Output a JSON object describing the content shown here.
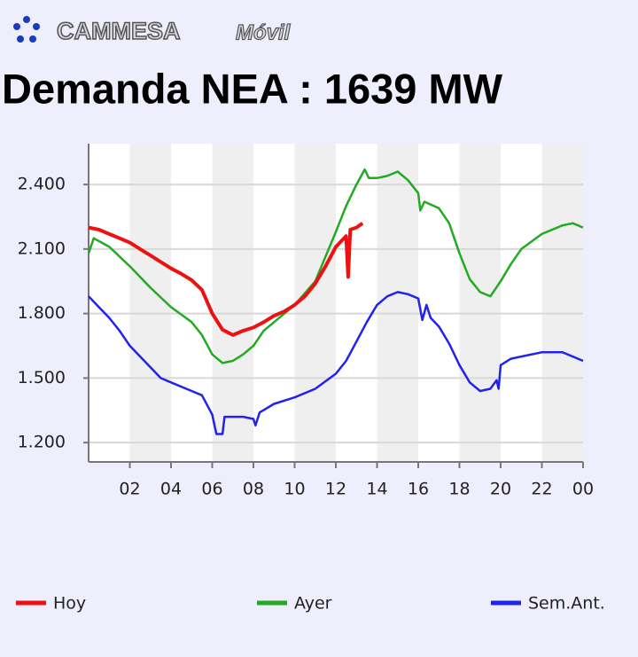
{
  "header": {
    "brand": "CAMMESA",
    "app": "Móvil"
  },
  "chart_data": {
    "type": "line",
    "title": "Demanda NEA : 1639 MW",
    "xlim": [
      0,
      24
    ],
    "xticks": [
      {
        "value": 2,
        "label": "02"
      },
      {
        "value": 4,
        "label": "04"
      },
      {
        "value": 6,
        "label": "06"
      },
      {
        "value": 8,
        "label": "08"
      },
      10,
      12,
      14,
      16,
      18,
      20,
      22,
      {
        "value": 24,
        "label": "00"
      }
    ],
    "ylim": [
      1110,
      2590
    ],
    "yticks": [
      {
        "value": 1200,
        "label": "1.200"
      },
      {
        "value": 1500,
        "label": "1.500"
      },
      {
        "value": 1800,
        "label": "1.800"
      },
      {
        "value": 2100,
        "label": "2.100"
      },
      {
        "value": 2400,
        "label": "2.400"
      }
    ],
    "grid": true,
    "legend": "bottom",
    "series": [
      {
        "name": "Hoy",
        "color": "#ee1111",
        "x": [
          0,
          0.5,
          1,
          1.5,
          2,
          2.5,
          3,
          3.5,
          4,
          4.5,
          5,
          5.5,
          6,
          6.5,
          7,
          7.5,
          8,
          8.5,
          9,
          9.5,
          10,
          10.5,
          11,
          11.5,
          12,
          12.5,
          12.6,
          12.7,
          13,
          13.3
        ],
        "values": [
          2200,
          2190,
          2170,
          2150,
          2130,
          2100,
          2070,
          2040,
          2010,
          1985,
          1955,
          1910,
          1800,
          1725,
          1700,
          1720,
          1735,
          1760,
          1790,
          1810,
          1840,
          1880,
          1940,
          2020,
          2110,
          2160,
          1970,
          2190,
          2200,
          2220
        ]
      },
      {
        "name": "Ayer",
        "color": "#22aa22",
        "x": [
          0,
          0.25,
          1,
          2,
          3,
          4,
          5,
          5.5,
          6,
          6.5,
          7,
          7.5,
          8,
          8.5,
          9,
          10,
          11,
          12,
          12.5,
          13,
          13.4,
          13.6,
          14,
          14.5,
          15,
          15.5,
          16,
          16.1,
          16.3,
          17,
          17.5,
          18,
          18.5,
          19,
          19.5,
          20,
          20.5,
          21,
          22,
          23,
          23.5,
          24
        ],
        "values": [
          2080,
          2150,
          2110,
          2020,
          1920,
          1830,
          1760,
          1700,
          1610,
          1570,
          1580,
          1610,
          1650,
          1720,
          1760,
          1840,
          1950,
          2180,
          2300,
          2400,
          2470,
          2430,
          2430,
          2440,
          2460,
          2420,
          2360,
          2280,
          2320,
          2290,
          2220,
          2080,
          1960,
          1900,
          1880,
          1950,
          2030,
          2100,
          2170,
          2210,
          2220,
          2200
        ]
      },
      {
        "name": "Sem.Ant.",
        "color": "#2222ee",
        "x": [
          0,
          0.5,
          1,
          1.5,
          2,
          3,
          3.5,
          4,
          5,
          5.5,
          6,
          6.2,
          6.5,
          6.6,
          7,
          7.5,
          8,
          8.1,
          8.3,
          9,
          10,
          11,
          12,
          12.5,
          13,
          13.5,
          14,
          14.5,
          15,
          15.5,
          16,
          16.2,
          16.4,
          16.6,
          17,
          17.5,
          18,
          18.5,
          19,
          19.5,
          19.8,
          19.9,
          20,
          20.5,
          21,
          22,
          23,
          24
        ],
        "values": [
          1880,
          1830,
          1780,
          1720,
          1650,
          1550,
          1500,
          1480,
          1440,
          1420,
          1330,
          1240,
          1240,
          1320,
          1320,
          1320,
          1310,
          1280,
          1340,
          1380,
          1410,
          1450,
          1520,
          1580,
          1670,
          1760,
          1840,
          1880,
          1900,
          1890,
          1870,
          1770,
          1840,
          1780,
          1740,
          1660,
          1560,
          1480,
          1440,
          1450,
          1490,
          1450,
          1560,
          1590,
          1600,
          1620,
          1620,
          1580
        ]
      }
    ]
  }
}
